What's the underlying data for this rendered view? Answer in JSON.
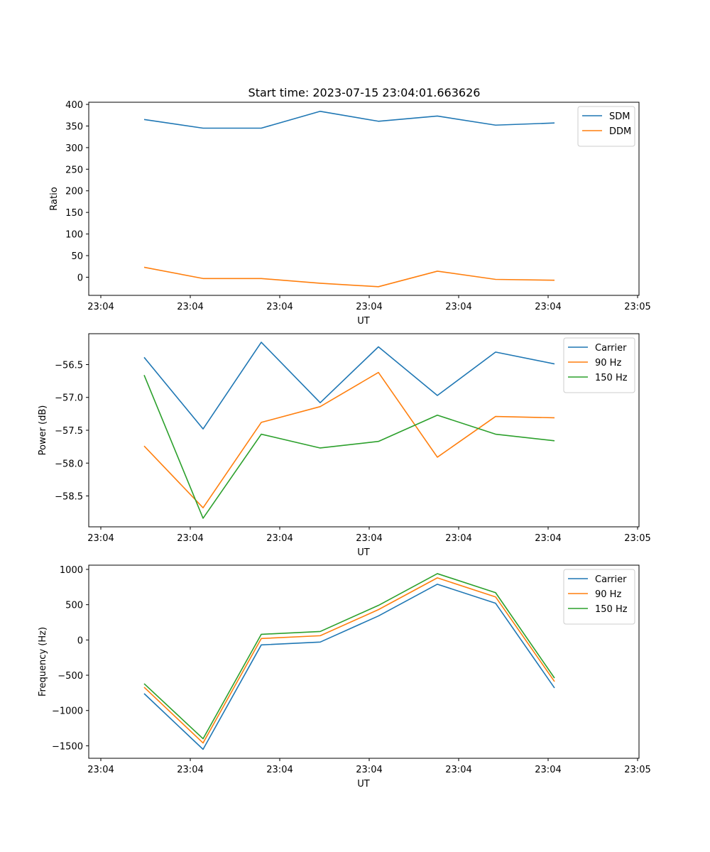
{
  "figure_title": "Start time: 2023-07-15 23:04:01.663626",
  "colors": {
    "blue": "#1f77b4",
    "orange": "#ff7f0e",
    "green": "#2ca02c"
  },
  "chart_data": [
    {
      "type": "line",
      "xlabel": "UT",
      "ylabel": "Ratio",
      "x_tick_labels": [
        "23:04",
        "23:04",
        "23:04",
        "23:04",
        "23:04",
        "23:04",
        "23:05"
      ],
      "ylim": [
        -42,
        405
      ],
      "yticks": [
        0,
        50,
        100,
        150,
        200,
        250,
        300,
        350,
        400
      ],
      "ytick_labels": [
        "0",
        "50",
        "100",
        "150",
        "200",
        "250",
        "300",
        "350",
        "400"
      ],
      "legend_position": "top-right",
      "series": [
        {
          "name": "SDM",
          "color": "#1f77b4",
          "values": [
            365,
            345,
            345,
            384,
            361,
            373,
            352,
            357
          ]
        },
        {
          "name": "DDM",
          "color": "#ff7f0e",
          "values": [
            23,
            -3,
            -3,
            -14,
            -22,
            14,
            -5,
            -7
          ]
        }
      ]
    },
    {
      "type": "line",
      "xlabel": "UT",
      "ylabel": "Power (dB)",
      "x_tick_labels": [
        "23:04",
        "23:04",
        "23:04",
        "23:04",
        "23:04",
        "23:04",
        "23:05"
      ],
      "ylim": [
        -58.97,
        -56.03
      ],
      "yticks": [
        -58.5,
        -58.0,
        -57.5,
        -57.0,
        -56.5
      ],
      "ytick_labels": [
        "−58.5",
        "−58.0",
        "−57.5",
        "−57.0",
        "−56.5"
      ],
      "legend_position": "top-right",
      "series": [
        {
          "name": "Carrier",
          "color": "#1f77b4",
          "values": [
            -56.39,
            -57.48,
            -56.16,
            -57.08,
            -56.23,
            -56.97,
            -56.31,
            -56.49
          ]
        },
        {
          "name": "90 Hz",
          "color": "#ff7f0e",
          "values": [
            -57.74,
            -58.68,
            -57.38,
            -57.14,
            -56.62,
            -57.91,
            -57.29,
            -57.31
          ]
        },
        {
          "name": "150 Hz",
          "color": "#2ca02c",
          "values": [
            -56.66,
            -58.84,
            -57.56,
            -57.77,
            -57.67,
            -57.27,
            -57.56,
            -57.66
          ]
        }
      ]
    },
    {
      "type": "line",
      "xlabel": "UT",
      "ylabel": "Frequency (Hz)",
      "x_tick_labels": [
        "23:04",
        "23:04",
        "23:04",
        "23:04",
        "23:04",
        "23:04",
        "23:05"
      ],
      "ylim": [
        -1677,
        1060
      ],
      "yticks": [
        -1500,
        -1000,
        -500,
        0,
        500,
        1000
      ],
      "ytick_labels": [
        "−1500",
        "−1000",
        "−500",
        "0",
        "500",
        "1000"
      ],
      "legend_position": "top-right",
      "series": [
        {
          "name": "Carrier",
          "color": "#1f77b4",
          "values": [
            -760,
            -1550,
            -70,
            -30,
            340,
            790,
            520,
            -680
          ]
        },
        {
          "name": "90 Hz",
          "color": "#ff7f0e",
          "values": [
            -670,
            -1460,
            20,
            60,
            430,
            880,
            610,
            -590
          ]
        },
        {
          "name": "150 Hz",
          "color": "#2ca02c",
          "values": [
            -620,
            -1400,
            80,
            120,
            490,
            940,
            670,
            -540
          ]
        }
      ]
    }
  ]
}
